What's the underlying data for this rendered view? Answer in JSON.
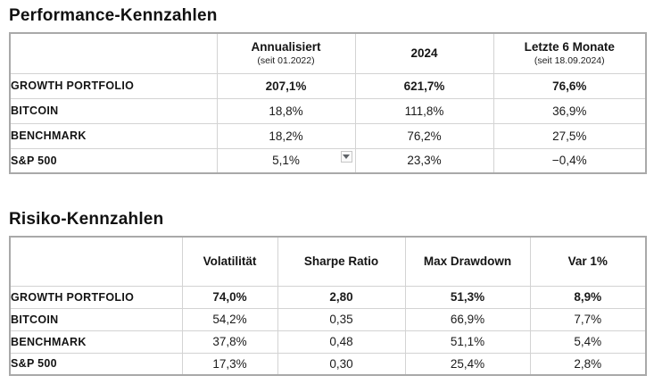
{
  "performance_table": {
    "title": "Performance-Kennzahlen",
    "columns": [
      {
        "label": "",
        "sub": ""
      },
      {
        "label": "Annualisiert",
        "sub": "(seit 01.2022)"
      },
      {
        "label": "2024",
        "sub": ""
      },
      {
        "label": "Letzte 6 Monate",
        "sub": "(seit 18.09.2024)"
      }
    ],
    "rows": [
      {
        "label": "GROWTH PORTFOLIO",
        "values": [
          "207,1%",
          "621,7%",
          "76,6%"
        ],
        "emphasis": true
      },
      {
        "label": "BITCOIN",
        "values": [
          "18,8%",
          "111,8%",
          "36,9%"
        ],
        "emphasis": false
      },
      {
        "label": "BENCHMARK",
        "values": [
          "18,2%",
          "76,2%",
          "27,5%"
        ],
        "emphasis": false
      },
      {
        "label": "S&P 500",
        "values": [
          "5,1%",
          "23,3%",
          "−0,4%"
        ],
        "emphasis": false
      }
    ],
    "dropdown": {
      "row": "S&P 500",
      "column": "Annualisiert",
      "icon": "dropdown-arrow"
    }
  },
  "risk_table": {
    "title": "Risiko-Kennzahlen",
    "columns": [
      {
        "label": ""
      },
      {
        "label": "Volatilität"
      },
      {
        "label": "Sharpe Ratio"
      },
      {
        "label": "Max Drawdown"
      },
      {
        "label": "Var 1%"
      }
    ],
    "rows": [
      {
        "label": "GROWTH PORTFOLIO",
        "values": [
          "74,0%",
          "2,80",
          "51,3%",
          "8,9%"
        ],
        "emphasis": true
      },
      {
        "label": "BITCOIN",
        "values": [
          "54,2%",
          "0,35",
          "66,9%",
          "7,7%"
        ],
        "emphasis": false
      },
      {
        "label": "BENCHMARK",
        "values": [
          "37,8%",
          "0,48",
          "51,1%",
          "5,4%"
        ],
        "emphasis": false
      },
      {
        "label": "S&P 500",
        "values": [
          "17,3%",
          "0,30",
          "25,4%",
          "2,8%"
        ],
        "emphasis": false
      }
    ]
  },
  "colors": {
    "background": "#ffffff",
    "text": "#161616",
    "border_inner": "#d3d3d3",
    "border_outer": "#a9a9a9"
  }
}
